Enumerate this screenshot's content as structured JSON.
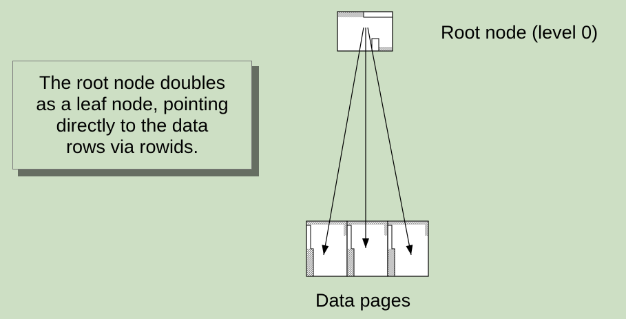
{
  "colors": {
    "background": "#cddfc4",
    "callout_fill": "#cddfc4",
    "callout_shadow": "#666e62",
    "node_fill": "#ffffff",
    "hatch": "#8c8c8c",
    "line": "#000000"
  },
  "callout": {
    "lines": [
      "The root node doubles",
      "as a leaf node, pointing",
      "directly to the data",
      "rows via rowids."
    ]
  },
  "root_label": "Root node (level 0)",
  "data_pages_label": "Data pages",
  "data_page_count": 3,
  "pointer_count": 3
}
